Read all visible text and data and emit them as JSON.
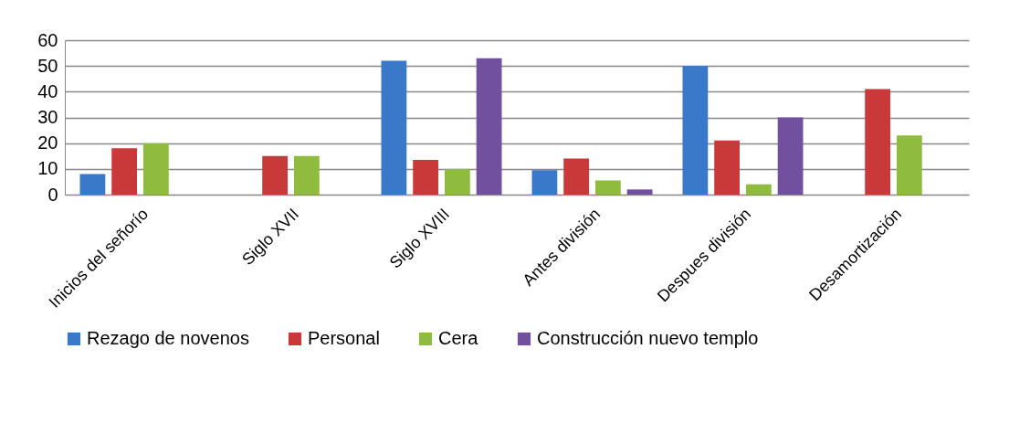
{
  "chart_data": {
    "type": "bar",
    "categories": [
      "Inicios del señorío",
      "Siglo XVII",
      "Siglo XVIII",
      "Antes división",
      "Despues división",
      "Desamortización"
    ],
    "series": [
      {
        "name": "Rezago de novenos",
        "color": "#3a78c9",
        "values": [
          8,
          null,
          52,
          9.5,
          50,
          null
        ]
      },
      {
        "name": "Personal",
        "color": "#c9393a",
        "values": [
          18,
          15,
          13.5,
          14,
          21,
          41
        ]
      },
      {
        "name": "Cera",
        "color": "#8fbc3f",
        "values": [
          20,
          15,
          10,
          5.5,
          4,
          23
        ]
      },
      {
        "name": "Construcción nuevo templo",
        "color": "#7150a0",
        "values": [
          null,
          null,
          53,
          2,
          30,
          null
        ]
      }
    ],
    "ylim": [
      0,
      60
    ],
    "yticks": [
      0,
      10,
      20,
      30,
      40,
      50,
      60
    ],
    "grid": "y",
    "legend": "bottom"
  }
}
